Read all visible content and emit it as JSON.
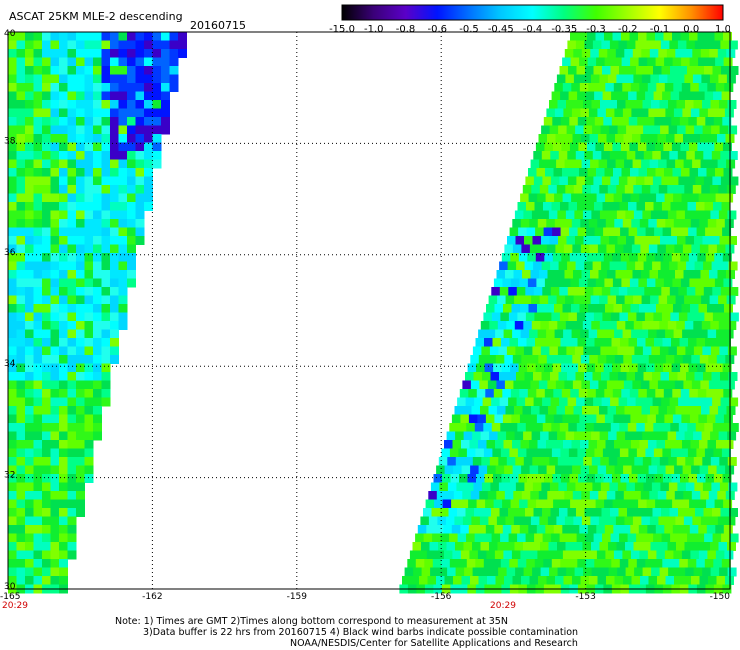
{
  "header": {
    "title": "ASCAT 25KM MLE-2 descending",
    "date": "20160715"
  },
  "colorbar": {
    "labels": [
      "-15.0",
      "-1.0",
      "-0.8",
      "-0.6",
      "-0.5",
      "-0.45",
      "-0.4",
      "-0.35",
      "-0.3",
      "-0.2",
      "-0.1",
      "0.0",
      "1.0"
    ],
    "colors": [
      "#000000",
      "#3a0078",
      "#5a00c8",
      "#0014ff",
      "#0070ff",
      "#00c8ff",
      "#00ffff",
      "#00ff80",
      "#40ff00",
      "#a0ff00",
      "#ffff00",
      "#ff9000",
      "#ff0000"
    ]
  },
  "map": {
    "lat_labels": [
      "40",
      "38",
      "36",
      "34",
      "32",
      "30"
    ],
    "lon_labels": [
      "-165",
      "-162",
      "-159",
      "-156",
      "-153",
      "-150"
    ],
    "lon_range": [
      -165,
      -150
    ],
    "lat_range": [
      30,
      40
    ],
    "pass_times": [
      "20:29",
      "20:29"
    ]
  },
  "footer": {
    "line1": "Note: 1) Times are GMT 2)Times along bottom correspond to measurement at 35N",
    "line2": "3)Data buffer is 22 hrs from 20160715 4) Black wind barbs indicate possible contamination",
    "line3": "NOAA/NESDIS/Center for Satellite Applications and Research"
  }
}
